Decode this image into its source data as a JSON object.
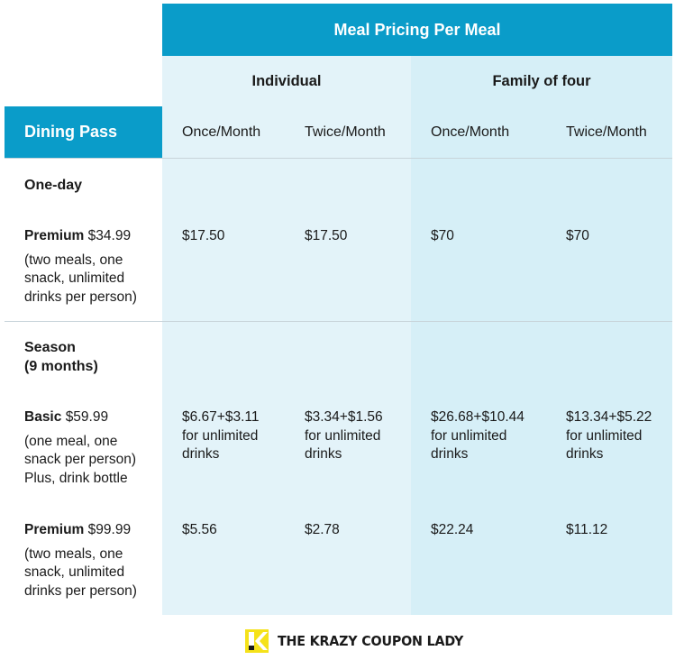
{
  "table": {
    "title": "Meal Pricing Per Meal",
    "groups": [
      "Individual",
      "Family of four"
    ],
    "pass_header": "Dining Pass",
    "columns": [
      "Once/Month",
      "Twice/Month",
      "Once/Month",
      "Twice/Month"
    ],
    "sections": [
      {
        "title": "One-day",
        "rows": [
          {
            "name": "Premium",
            "price": "$34.99",
            "desc": [
              "(two meals, one",
              "snack, unlimited",
              "drinks per person)"
            ],
            "cells": [
              [
                "$17.50"
              ],
              [
                "$17.50"
              ],
              [
                "$70"
              ],
              [
                "$70"
              ]
            ]
          }
        ]
      },
      {
        "title": [
          "Season",
          "(9 months)"
        ],
        "rows": [
          {
            "name": "Basic",
            "price": "$59.99",
            "desc": [
              "(one meal, one",
              "snack per person)",
              "Plus, drink bottle"
            ],
            "cells": [
              [
                "$6.67+$3.11",
                "for unlimited",
                "drinks"
              ],
              [
                "$3.34+$1.56",
                "for unlimited",
                "drinks"
              ],
              [
                "$26.68+$10.44",
                "for unlimited",
                "drinks"
              ],
              [
                "$13.34+$5.22",
                "for unlimited",
                "drinks"
              ]
            ]
          },
          {
            "name": "Premium",
            "price": "$99.99",
            "desc": [
              "(two meals, one",
              "snack, unlimited",
              "drinks per person)"
            ],
            "cells": [
              [
                "$5.56"
              ],
              [
                "$2.78"
              ],
              [
                "$22.24"
              ],
              [
                "$11.12"
              ]
            ]
          }
        ]
      }
    ]
  },
  "logo": {
    "text": "THE KRAZY COUPON LADY",
    "icon": "k-logo-icon",
    "colors": {
      "mark": "#f5e21a",
      "text": "#1a1a1a"
    }
  },
  "colors": {
    "header": "#0a9cc9",
    "individual_bg": "#e3f3f9",
    "family_bg": "#d6eff7",
    "divider": "#c8d4da"
  }
}
